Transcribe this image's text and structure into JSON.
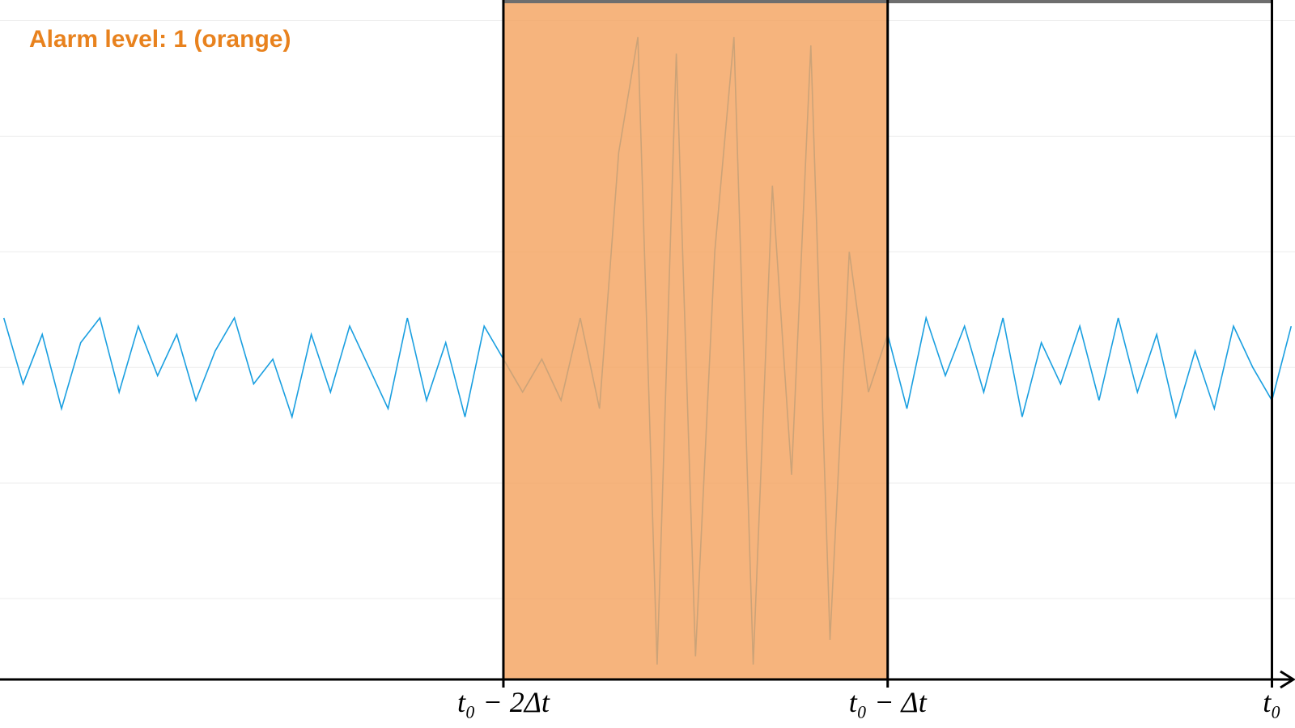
{
  "chart_data": {
    "type": "line",
    "title": "Alarm level: 1 (orange)",
    "title_color": "#e8821e",
    "x": [
      -3.3,
      -3.25,
      -3.2,
      -3.15,
      -3.1,
      -3.05,
      -3,
      -2.95,
      -2.9,
      -2.85,
      -2.8,
      -2.75,
      -2.7,
      -2.65,
      -2.6,
      -2.55,
      -2.5,
      -2.45,
      -2.4,
      -2.35,
      -2.3,
      -2.25,
      -2.2,
      -2.15,
      -2.1,
      -2.05,
      -2,
      -1.95,
      -1.9,
      -1.85,
      -1.8,
      -1.75,
      -1.7,
      -1.65,
      -1.6,
      -1.55,
      -1.5,
      -1.45,
      -1.4,
      -1.35,
      -1.3,
      -1.25,
      -1.2,
      -1.15,
      -1.1,
      -1.05,
      -1,
      -0.95,
      -0.9,
      -0.85,
      -0.8,
      -0.75,
      -0.7,
      -0.65,
      -0.6,
      -0.55,
      -0.5,
      -0.45,
      -0.4,
      -0.35,
      -0.3,
      -0.25,
      -0.2,
      -0.15,
      -0.1,
      -0.05,
      0,
      0.05
    ],
    "series": [
      {
        "color": "#1a9fe0",
        "values": [
          0.6,
          -0.2,
          0.4,
          -0.5,
          0.3,
          0.6,
          -0.3,
          0.5,
          -0.1,
          0.4,
          -0.4,
          0.2,
          0.6,
          -0.2,
          0.1,
          -0.6,
          0.4,
          -0.3,
          0.5,
          0.0,
          -0.5,
          0.6,
          -0.4,
          0.3,
          -0.6,
          0.5,
          0.1,
          -0.3,
          0.1,
          -0.4,
          0.6,
          -0.5,
          2.6,
          4.0,
          -3.6,
          3.8,
          -3.5,
          1.4,
          4.0,
          -3.6,
          2.2,
          -1.3,
          3.9,
          -3.3,
          1.4,
          -0.3,
          0.4,
          -0.5,
          0.6,
          -0.1,
          0.5,
          -0.3,
          0.6,
          -0.6,
          0.3,
          -0.2,
          0.5,
          -0.4,
          0.6,
          -0.3,
          0.4,
          -0.6,
          0.2,
          -0.5,
          0.5,
          0.0,
          -0.4,
          0.5
        ]
      }
    ],
    "highlight": {
      "from": -2,
      "to": -1,
      "color": "#f4a460"
    },
    "xlim": [
      -3.31,
      0.06
    ],
    "xticks": [
      {
        "value": -2,
        "label": "t₀ − 2Δt"
      },
      {
        "value": -1,
        "label": "t₀ − Δt"
      },
      {
        "value": 0,
        "label": "t₀"
      }
    ],
    "ylim": [
      -3.78,
      4.45
    ],
    "yticks": [
      -2.8,
      -1.4,
      0,
      1.4,
      2.8,
      4.2
    ],
    "ytick_labels": false,
    "grid": true
  }
}
